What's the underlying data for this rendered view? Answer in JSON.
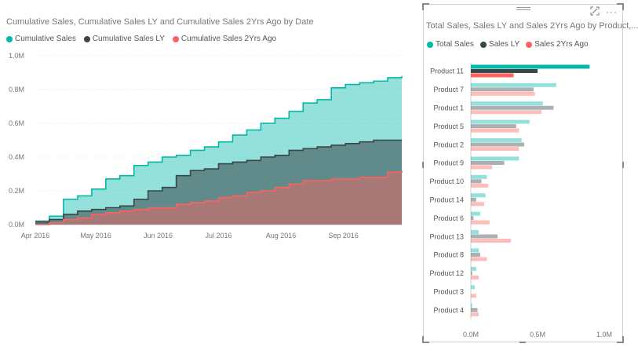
{
  "left_visual": {
    "title": "Cumulative Sales, Cumulative Sales LY and Cumulative Sales 2Yrs Ago by Date",
    "legend": [
      {
        "label": "Cumulative Sales",
        "color": "#01B8AA"
      },
      {
        "label": "Cumulative Sales LY",
        "color": "#374649"
      },
      {
        "label": "Cumulative Sales 2Yrs Ago",
        "color": "#FD625E"
      }
    ]
  },
  "right_visual": {
    "title": "Total Sales, Sales LY and Sales 2Yrs Ago by Product,...",
    "legend": [
      {
        "label": "Total Sales",
        "color": "#01B8AA"
      },
      {
        "label": "Sales LY",
        "color": "#374649"
      },
      {
        "label": "Sales 2Yrs Ago",
        "color": "#FD625E"
      }
    ],
    "icons": [
      "focus-mode-icon",
      "more-options-icon"
    ]
  },
  "chart_data": [
    {
      "type": "area",
      "title": "Cumulative Sales, Cumulative Sales LY and Cumulative Sales 2Yrs Ago by Date",
      "x": [
        "2016-04-01",
        "2016-04-08",
        "2016-04-15",
        "2016-04-22",
        "2016-04-29",
        "2016-05-06",
        "2016-05-13",
        "2016-05-20",
        "2016-05-27",
        "2016-06-03",
        "2016-06-10",
        "2016-06-17",
        "2016-06-24",
        "2016-07-01",
        "2016-07-08",
        "2016-07-15",
        "2016-07-22",
        "2016-07-29",
        "2016-08-05",
        "2016-08-12",
        "2016-08-19",
        "2016-08-26",
        "2016-09-02",
        "2016-09-09",
        "2016-09-16",
        "2016-09-23",
        "2016-09-30"
      ],
      "x_ticks": [
        "Apr 2016",
        "May 2016",
        "Jun 2016",
        "Jul 2016",
        "Aug 2016",
        "Sep 2016"
      ],
      "y_ticks": [
        "0.0M",
        "0.2M",
        "0.4M",
        "0.6M",
        "0.8M",
        "1.0M"
      ],
      "ylim": [
        0,
        1.0
      ],
      "grid": true,
      "legend_position": "top-left",
      "series": [
        {
          "name": "Cumulative Sales",
          "color": "#01B8AA",
          "values": [
            0.01,
            0.05,
            0.15,
            0.17,
            0.21,
            0.27,
            0.29,
            0.35,
            0.37,
            0.4,
            0.41,
            0.44,
            0.46,
            0.49,
            0.53,
            0.56,
            0.6,
            0.63,
            0.67,
            0.72,
            0.74,
            0.81,
            0.83,
            0.84,
            0.85,
            0.87,
            0.88
          ]
        },
        {
          "name": "Cumulative Sales LY",
          "color": "#374649",
          "values": [
            0.02,
            0.03,
            0.06,
            0.08,
            0.09,
            0.1,
            0.11,
            0.15,
            0.2,
            0.22,
            0.29,
            0.32,
            0.33,
            0.36,
            0.37,
            0.38,
            0.4,
            0.41,
            0.44,
            0.45,
            0.46,
            0.47,
            0.48,
            0.49,
            0.5,
            0.5,
            0.5
          ]
        },
        {
          "name": "Cumulative Sales 2Yrs Ago",
          "color": "#FD625E",
          "values": [
            0.0,
            0.01,
            0.03,
            0.04,
            0.06,
            0.07,
            0.08,
            0.09,
            0.1,
            0.1,
            0.12,
            0.13,
            0.14,
            0.16,
            0.17,
            0.19,
            0.2,
            0.22,
            0.24,
            0.26,
            0.26,
            0.27,
            0.27,
            0.28,
            0.28,
            0.31,
            0.32
          ]
        }
      ]
    },
    {
      "type": "bar",
      "orientation": "horizontal",
      "title": "Total Sales, Sales LY and Sales 2Yrs Ago by Product,...",
      "categories": [
        "Product 11",
        "Product 7",
        "Product 1",
        "Product 5",
        "Product 2",
        "Product 9",
        "Product 10",
        "Product 14",
        "Product 6",
        "Product 13",
        "Product 8",
        "Product 12",
        "Product 3",
        "Product 4"
      ],
      "x_ticks": [
        "0.0M",
        "0.5M",
        "1.0M"
      ],
      "xlim": [
        0,
        1.0
      ],
      "highlighted_category": "Product 11",
      "legend_position": "top-left",
      "series": [
        {
          "name": "Total Sales",
          "color": "#01B8AA",
          "values": [
            0.89,
            0.64,
            0.54,
            0.44,
            0.38,
            0.36,
            0.12,
            0.11,
            0.07,
            0.06,
            0.06,
            0.04,
            0.03,
            0.01
          ]
        },
        {
          "name": "Sales LY",
          "color": "#374649",
          "values": [
            0.5,
            0.47,
            0.62,
            0.34,
            0.4,
            0.25,
            0.08,
            0.04,
            0.02,
            0.2,
            0.07,
            0.01,
            0.0,
            0.05
          ]
        },
        {
          "name": "Sales 2Yrs Ago",
          "color": "#FD625E",
          "values": [
            0.32,
            0.48,
            0.53,
            0.36,
            0.36,
            0.16,
            0.13,
            0.1,
            0.14,
            0.3,
            0.12,
            0.06,
            0.04,
            0.06
          ]
        }
      ]
    }
  ]
}
